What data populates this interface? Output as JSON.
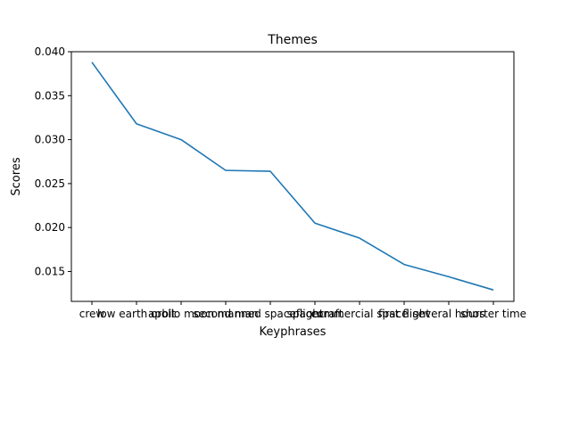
{
  "chart_data": {
    "type": "line",
    "title": "Themes",
    "xlabel": "Keyphrases",
    "ylabel": "Scores",
    "categories": [
      "crew",
      "low earth orbit",
      "apollo moon",
      "second man",
      "manned spaceflight",
      "spacecraft",
      "commercial space",
      "first flight",
      "several hours",
      "shorter time"
    ],
    "values": [
      0.0388,
      0.0318,
      0.03,
      0.0265,
      0.0264,
      0.0205,
      0.0188,
      0.0158,
      0.0144,
      0.0129
    ],
    "ylim": [
      0.0116,
      0.04
    ],
    "yticks": [
      "0.015",
      "0.020",
      "0.025",
      "0.030",
      "0.035",
      "0.040"
    ],
    "ytick_values": [
      0.015,
      0.02,
      0.025,
      0.03,
      0.035,
      0.04
    ],
    "grid": false,
    "line_color": "#1f77b4"
  }
}
